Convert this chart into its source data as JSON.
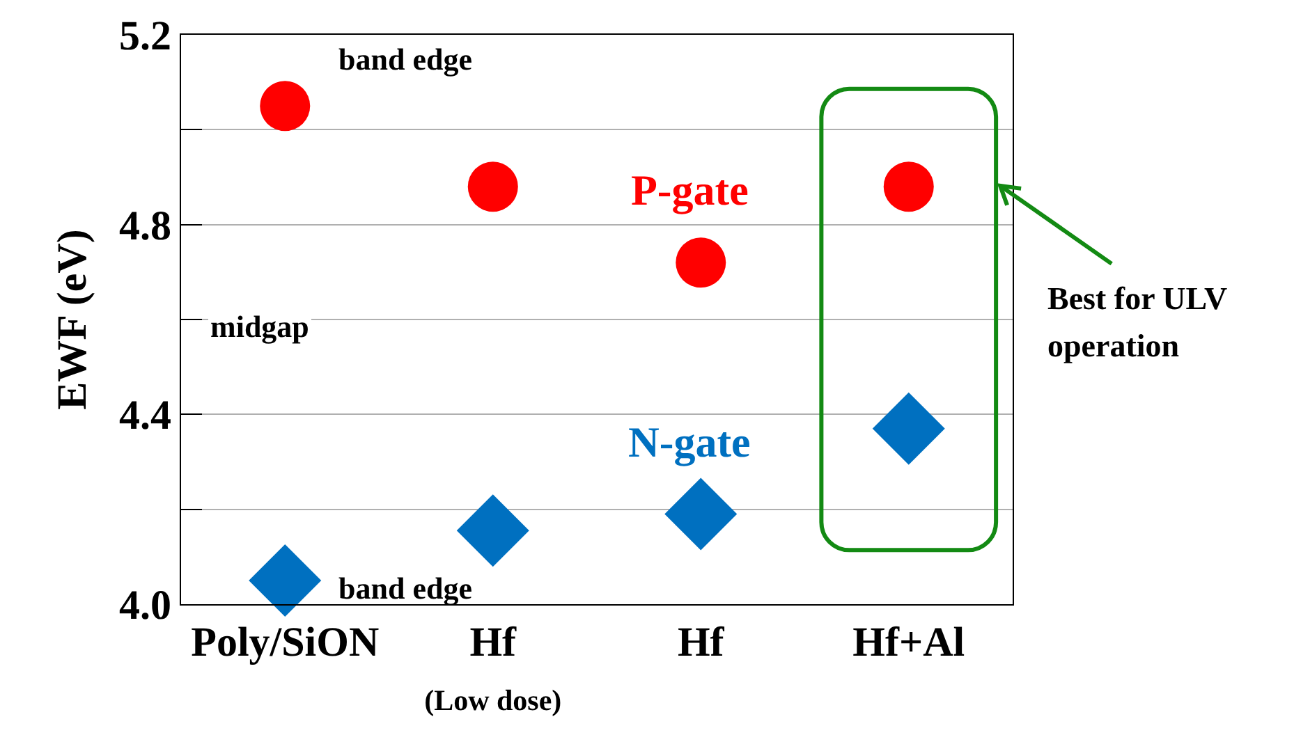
{
  "chart_data": {
    "type": "scatter",
    "ylabel": "EWF (eV)",
    "categories": [
      "Poly/SiON",
      "Hf\n(Low dose)",
      "Hf",
      "Hf+Al"
    ],
    "series": [
      {
        "name": "P-gate",
        "color": "#ff0000",
        "marker": "circle",
        "values": [
          5.05,
          4.88,
          4.72,
          4.88
        ]
      },
      {
        "name": "N-gate",
        "color": "#0070c0",
        "marker": "diamond",
        "values": [
          4.05,
          4.155,
          4.19,
          4.37
        ]
      }
    ],
    "ylim": [
      4.0,
      5.2
    ],
    "yticks": [
      {
        "value": 4.0,
        "label": "4.0"
      },
      {
        "value": 4.2,
        "label": null
      },
      {
        "value": 4.4,
        "label": "4.4"
      },
      {
        "value": 4.6,
        "label": null
      },
      {
        "value": 4.8,
        "label": "4.8"
      },
      {
        "value": 5.0,
        "label": null
      },
      {
        "value": 5.2,
        "label": "5.2"
      }
    ],
    "grid": "y",
    "legend": false,
    "annotations": [
      {
        "text": "band edge",
        "x": "Poly/SiON",
        "y": 5.05
      },
      "midgap",
      {
        "text": "band edge",
        "x": "Poly/SiON",
        "y": 4.05
      },
      "Best for ULV operation"
    ]
  }
}
